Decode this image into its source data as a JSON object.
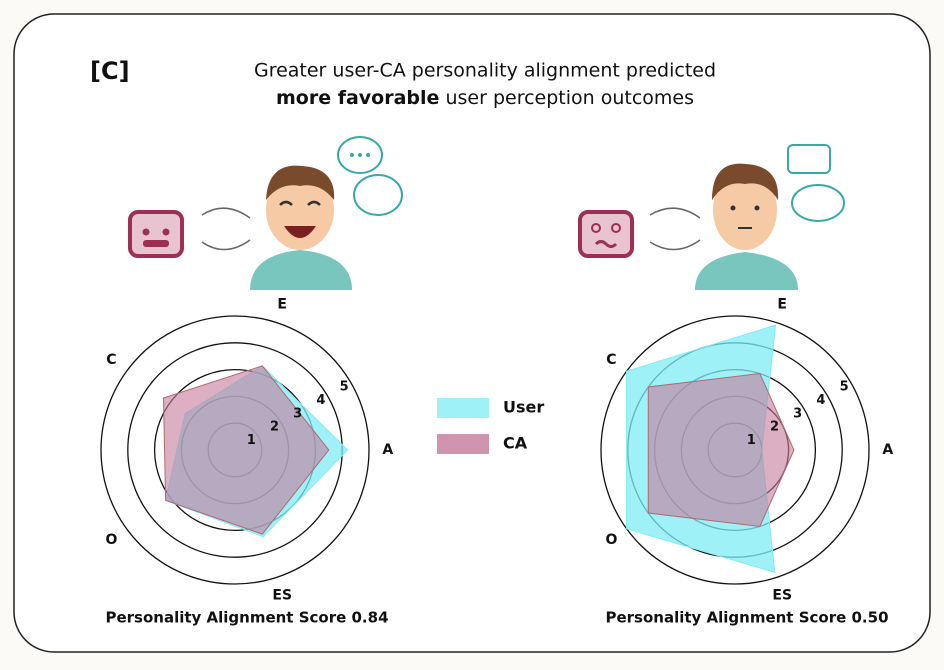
{
  "panel_label": "[C]",
  "title_line1": "Greater user-CA personality alignment predicted",
  "title_bold": "more favorable",
  "title_rest": "user perception outcomes",
  "chart_data": [
    {
      "type": "radar",
      "caption": "Personality Alignment Score 0.84",
      "categories": [
        "E",
        "A",
        "ES",
        "O",
        "C"
      ],
      "rlim": [
        0,
        5
      ],
      "rticks": [
        1,
        2,
        3,
        4,
        5
      ],
      "series": [
        {
          "name": "User",
          "color": "#7eeef4",
          "values": [
            3.3,
            4.2,
            3.4,
            3.2,
            2.3
          ]
        },
        {
          "name": "CA",
          "color": "#c4799a",
          "values": [
            3.3,
            3.5,
            3.3,
            3.2,
            3.3
          ]
        }
      ]
    },
    {
      "type": "radar",
      "caption": "Personality Alignment Score 0.50",
      "categories": [
        "E",
        "A",
        "ES",
        "O",
        "C"
      ],
      "rlim": [
        0,
        5
      ],
      "rticks": [
        1,
        2,
        3,
        4,
        5
      ],
      "series": [
        {
          "name": "User",
          "color": "#7eeef4",
          "values": [
            4.9,
            1.0,
            4.8,
            5,
            5
          ]
        },
        {
          "name": "CA",
          "color": "#c4799a",
          "values": [
            3,
            2.2,
            3,
            4,
            4
          ]
        }
      ]
    }
  ]
}
